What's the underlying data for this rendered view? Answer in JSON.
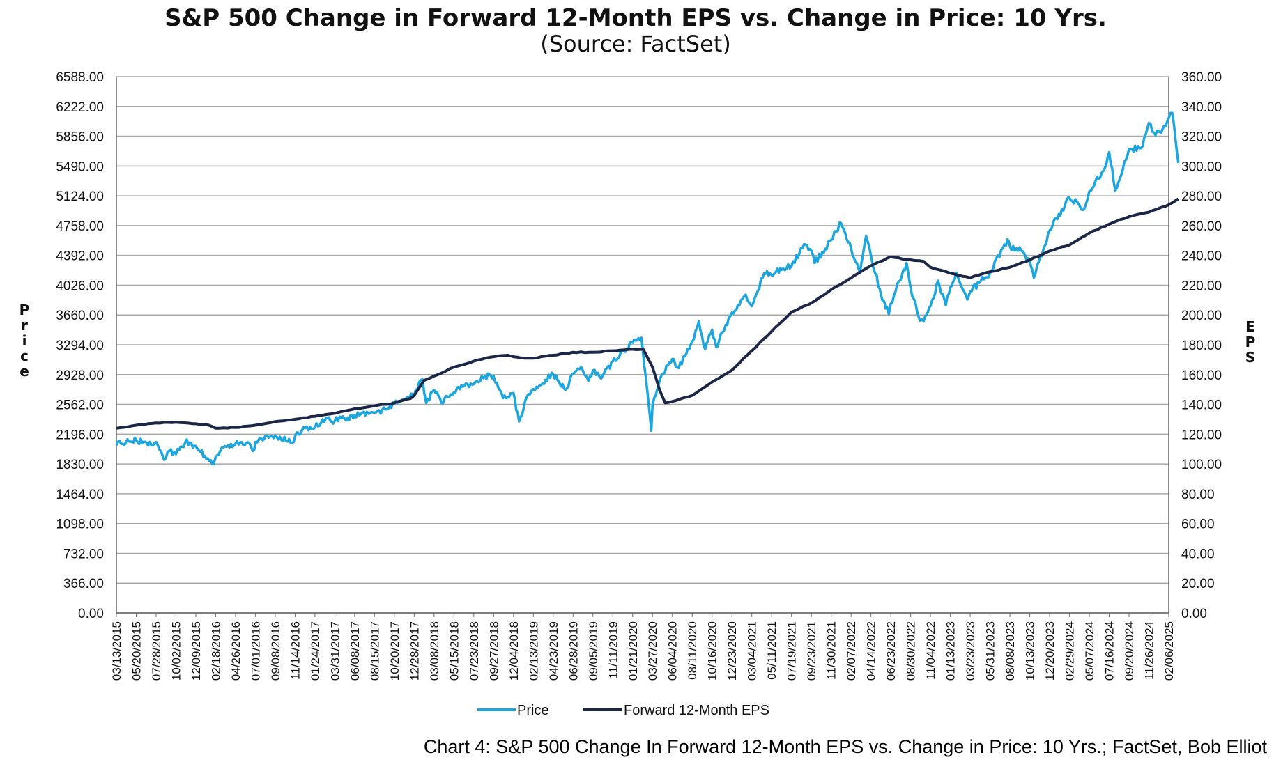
{
  "chart_data": {
    "type": "line",
    "title": "S&P 500 Change in Forward 12-Month EPS vs. Change in Price: 10 Yrs.",
    "subtitle": "(Source: FactSet)",
    "ylabel_left": "Price",
    "ylabel_right": "EPS",
    "ylim_left": [
      0,
      6588
    ],
    "ylim_right": [
      0,
      360
    ],
    "yticks_left": [
      "6588.00",
      "6222.00",
      "5856.00",
      "5490.00",
      "5124.00",
      "4758.00",
      "4392.00",
      "4026.00",
      "3660.00",
      "3294.00",
      "2928.00",
      "2562.00",
      "2196.00",
      "1830.00",
      "1464.00",
      "1098.00",
      "732.00",
      "366.00",
      "0.00"
    ],
    "yticks_right": [
      "360.00",
      "340.00",
      "320.00",
      "300.00",
      "280.00",
      "260.00",
      "240.00",
      "220.00",
      "200.00",
      "180.00",
      "160.00",
      "140.00",
      "120.00",
      "100.00",
      "80.00",
      "60.00",
      "40.00",
      "20.00",
      "0.00"
    ],
    "x_tick_labels": [
      "03/13/2015",
      "05/20/2015",
      "07/28/2015",
      "10/02/2015",
      "12/09/2015",
      "02/18/2016",
      "04/26/2016",
      "07/01/2016",
      "09/08/2016",
      "11/14/2016",
      "01/24/2017",
      "03/31/2017",
      "06/08/2017",
      "08/15/2017",
      "10/20/2017",
      "12/28/2017",
      "03/08/2018",
      "05/15/2018",
      "07/23/2018",
      "09/27/2018",
      "12/04/2018",
      "02/13/2019",
      "04/23/2019",
      "06/28/2019",
      "09/05/2019",
      "11/11/2019",
      "01/21/2020",
      "03/27/2020",
      "06/04/2020",
      "08/11/2020",
      "10/16/2020",
      "12/23/2020",
      "03/04/2021",
      "05/11/2021",
      "07/19/2021",
      "09/23/2021",
      "11/30/2021",
      "02/07/2022",
      "04/14/2022",
      "06/23/2022",
      "08/30/2022",
      "11/04/2022",
      "01/13/2023",
      "03/23/2023",
      "05/31/2023",
      "08/08/2023",
      "10/13/2023",
      "12/20/2023",
      "02/29/2024",
      "05/07/2024",
      "07/16/2024",
      "09/20/2024",
      "11/26/2024",
      "02/06/2025"
    ],
    "grid": true,
    "legend_position": "bottom",
    "series": [
      {
        "name": "Price",
        "axis": "left",
        "color": "#1BA6E0",
        "points": [
          [
            "03/13/2015",
            2060
          ],
          [
            "04/15/2015",
            2100
          ],
          [
            "05/20/2015",
            2120
          ],
          [
            "06/25/2015",
            2090
          ],
          [
            "07/28/2015",
            2100
          ],
          [
            "08/24/2015",
            1880
          ],
          [
            "09/10/2015",
            1990
          ],
          [
            "10/02/2015",
            1950
          ],
          [
            "11/03/2015",
            2100
          ],
          [
            "12/09/2015",
            2050
          ],
          [
            "01/10/2016",
            1930
          ],
          [
            "02/11/2016",
            1830
          ],
          [
            "02/18/2016",
            1920
          ],
          [
            "03/20/2016",
            2050
          ],
          [
            "04/26/2016",
            2080
          ],
          [
            "06/01/2016",
            2090
          ],
          [
            "06/27/2016",
            2000
          ],
          [
            "07/01/2016",
            2100
          ],
          [
            "08/10/2016",
            2180
          ],
          [
            "09/08/2016",
            2180
          ],
          [
            "11/04/2016",
            2090
          ],
          [
            "11/14/2016",
            2170
          ],
          [
            "12/20/2016",
            2270
          ],
          [
            "01/24/2017",
            2280
          ],
          [
            "03/01/2017",
            2390
          ],
          [
            "03/31/2017",
            2360
          ],
          [
            "05/15/2017",
            2400
          ],
          [
            "06/08/2017",
            2430
          ],
          [
            "07/20/2017",
            2470
          ],
          [
            "08/15/2017",
            2460
          ],
          [
            "09/20/2017",
            2500
          ],
          [
            "10/20/2017",
            2570
          ],
          [
            "12/01/2017",
            2640
          ],
          [
            "12/28/2017",
            2680
          ],
          [
            "01/26/2018",
            2870
          ],
          [
            "02/08/2018",
            2580
          ],
          [
            "03/08/2018",
            2740
          ],
          [
            "04/02/2018",
            2580
          ],
          [
            "05/15/2018",
            2710
          ],
          [
            "06/15/2018",
            2780
          ],
          [
            "07/23/2018",
            2810
          ],
          [
            "08/29/2018",
            2910
          ],
          [
            "09/27/2018",
            2910
          ],
          [
            "10/29/2018",
            2640
          ],
          [
            "12/04/2018",
            2700
          ],
          [
            "12/24/2018",
            2350
          ],
          [
            "01/20/2019",
            2650
          ],
          [
            "02/13/2019",
            2750
          ],
          [
            "04/23/2019",
            2930
          ],
          [
            "06/03/2019",
            2740
          ],
          [
            "06/28/2019",
            2940
          ],
          [
            "07/26/2019",
            3020
          ],
          [
            "08/20/2019",
            2850
          ],
          [
            "09/05/2019",
            2980
          ],
          [
            "10/03/2019",
            2880
          ],
          [
            "11/11/2019",
            3090
          ],
          [
            "12/20/2019",
            3220
          ],
          [
            "01/21/2020",
            3320
          ],
          [
            "02/19/2020",
            3380
          ],
          [
            "03/09/2020",
            2750
          ],
          [
            "03/23/2020",
            2240
          ],
          [
            "03/27/2020",
            2540
          ],
          [
            "04/29/2020",
            2930
          ],
          [
            "06/04/2020",
            3120
          ],
          [
            "06/26/2020",
            3010
          ],
          [
            "08/11/2020",
            3330
          ],
          [
            "09/02/2020",
            3580
          ],
          [
            "09/23/2020",
            3240
          ],
          [
            "10/16/2020",
            3480
          ],
          [
            "10/30/2020",
            3270
          ],
          [
            "12/23/2020",
            3690
          ],
          [
            "02/10/2021",
            3910
          ],
          [
            "03/04/2021",
            3770
          ],
          [
            "04/15/2021",
            4170
          ],
          [
            "05/11/2021",
            4150
          ],
          [
            "06/20/2021",
            4230
          ],
          [
            "07/19/2021",
            4260
          ],
          [
            "08/30/2021",
            4530
          ],
          [
            "09/23/2021",
            4450
          ],
          [
            "10/04/2021",
            4300
          ],
          [
            "11/30/2021",
            4580
          ],
          [
            "01/03/2022",
            4790
          ],
          [
            "02/07/2022",
            4480
          ],
          [
            "03/08/2022",
            4170
          ],
          [
            "03/29/2022",
            4630
          ],
          [
            "04/14/2022",
            4390
          ],
          [
            "05/20/2022",
            3900
          ],
          [
            "06/16/2022",
            3670
          ],
          [
            "06/23/2022",
            3800
          ],
          [
            "08/16/2022",
            4300
          ],
          [
            "08/30/2022",
            3990
          ],
          [
            "09/30/2022",
            3590
          ],
          [
            "10/12/2022",
            3580
          ],
          [
            "11/04/2022",
            3770
          ],
          [
            "12/01/2022",
            4080
          ],
          [
            "12/28/2022",
            3780
          ],
          [
            "01/13/2023",
            4000
          ],
          [
            "02/02/2023",
            4180
          ],
          [
            "03/13/2023",
            3850
          ],
          [
            "03/23/2023",
            3950
          ],
          [
            "05/31/2023",
            4180
          ],
          [
            "07/31/2023",
            4590
          ],
          [
            "08/08/2023",
            4500
          ],
          [
            "09/15/2023",
            4450
          ],
          [
            "10/13/2023",
            4330
          ],
          [
            "10/27/2023",
            4120
          ],
          [
            "12/20/2023",
            4700
          ],
          [
            "02/29/2024",
            5100
          ],
          [
            "04/19/2024",
            4960
          ],
          [
            "05/07/2024",
            5180
          ],
          [
            "06/30/2024",
            5460
          ],
          [
            "07/16/2024",
            5660
          ],
          [
            "08/05/2024",
            5190
          ],
          [
            "09/20/2024",
            5700
          ],
          [
            "10/31/2024",
            5710
          ],
          [
            "11/26/2024",
            6020
          ],
          [
            "12/20/2024",
            5870
          ],
          [
            "01/15/2025",
            5950
          ],
          [
            "02/06/2025",
            6080
          ],
          [
            "02/19/2025",
            6140
          ],
          [
            "03/13/2025",
            5530
          ]
        ]
      },
      {
        "name": "Forward 12-Month EPS",
        "axis": "right",
        "color": "#1C2748",
        "points": [
          [
            "03/13/2015",
            124
          ],
          [
            "05/20/2015",
            126
          ],
          [
            "07/28/2015",
            127.5
          ],
          [
            "10/02/2015",
            128
          ],
          [
            "12/09/2015",
            127
          ],
          [
            "01/25/2016",
            126
          ],
          [
            "02/18/2016",
            124
          ],
          [
            "04/26/2016",
            124.5
          ],
          [
            "07/01/2016",
            126
          ],
          [
            "09/08/2016",
            128.5
          ],
          [
            "11/14/2016",
            130
          ],
          [
            "01/24/2017",
            132
          ],
          [
            "03/31/2017",
            134
          ],
          [
            "06/08/2017",
            137
          ],
          [
            "08/15/2017",
            139
          ],
          [
            "10/20/2017",
            141
          ],
          [
            "12/15/2017",
            144
          ],
          [
            "12/28/2017",
            146
          ],
          [
            "01/31/2018",
            156
          ],
          [
            "03/08/2018",
            159
          ],
          [
            "05/15/2018",
            165
          ],
          [
            "07/23/2018",
            169
          ],
          [
            "09/27/2018",
            172
          ],
          [
            "11/15/2018",
            173
          ],
          [
            "12/04/2018",
            172
          ],
          [
            "01/15/2019",
            171
          ],
          [
            "02/13/2019",
            171
          ],
          [
            "04/23/2019",
            173
          ],
          [
            "06/28/2019",
            175
          ],
          [
            "09/05/2019",
            175
          ],
          [
            "11/11/2019",
            176
          ],
          [
            "01/21/2020",
            177
          ],
          [
            "02/25/2020",
            177
          ],
          [
            "03/27/2020",
            165
          ],
          [
            "04/20/2020",
            150
          ],
          [
            "05/10/2020",
            141
          ],
          [
            "06/04/2020",
            142
          ],
          [
            "08/11/2020",
            146
          ],
          [
            "10/16/2020",
            155
          ],
          [
            "12/23/2020",
            163
          ],
          [
            "03/04/2021",
            176
          ],
          [
            "05/11/2021",
            189
          ],
          [
            "07/19/2021",
            202
          ],
          [
            "09/23/2021",
            208
          ],
          [
            "11/30/2021",
            217
          ],
          [
            "02/07/2022",
            225
          ],
          [
            "04/14/2022",
            233
          ],
          [
            "06/23/2022",
            239
          ],
          [
            "08/30/2022",
            237
          ],
          [
            "10/12/2022",
            236
          ],
          [
            "11/04/2022",
            232
          ],
          [
            "01/13/2023",
            228
          ],
          [
            "03/23/2023",
            225
          ],
          [
            "05/31/2023",
            229
          ],
          [
            "08/08/2023",
            232
          ],
          [
            "10/13/2023",
            237
          ],
          [
            "12/20/2023",
            243
          ],
          [
            "02/29/2024",
            247
          ],
          [
            "05/07/2024",
            255
          ],
          [
            "07/16/2024",
            261
          ],
          [
            "09/20/2024",
            266
          ],
          [
            "11/26/2024",
            269
          ],
          [
            "02/06/2025",
            274
          ],
          [
            "03/13/2025",
            278
          ]
        ]
      }
    ]
  },
  "caption": "Chart 4: S&P 500 Change In Forward 12-Month EPS vs. Change in Price: 10 Yrs.; FactSet, Bob Elliot"
}
